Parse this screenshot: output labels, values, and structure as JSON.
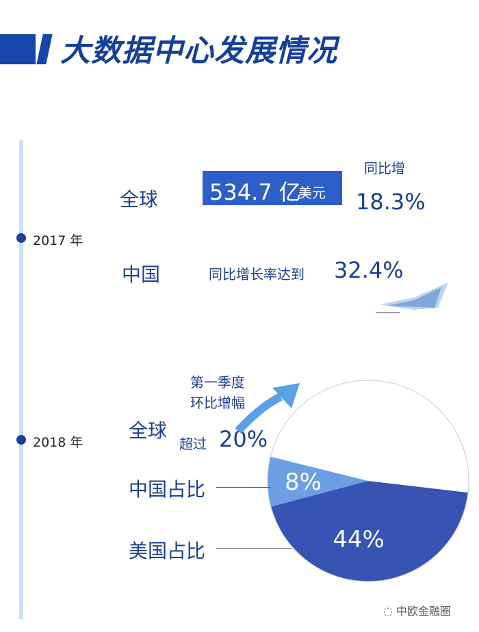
{
  "title": "大数据中心发展情况",
  "y2017": {
    "year": "2017 年",
    "global_label": "全球",
    "market_value": "534.7 亿",
    "market_unit": "美元",
    "yoy_label": "同比增",
    "yoy_value": "18.3%",
    "china_label": "中国",
    "china_text": "同比增长率达到",
    "china_value": "32.4%"
  },
  "y2018": {
    "year": "2018 年",
    "global_label": "全球",
    "q1_line1": "第一季度",
    "q1_line2": "环比增幅",
    "q1_line3": "超过",
    "q1_value": "20%",
    "china_share_label": "中国占比",
    "us_share_label": "美国占比"
  },
  "watermark": "中欧金融圈",
  "chart_data": {
    "type": "pie",
    "slices": [
      {
        "label": "美国占比",
        "value": 44,
        "display": "44%",
        "color": "#3753b4"
      },
      {
        "label": "中国占比",
        "value": 8,
        "display": "8%",
        "color": "#6b9ee3"
      },
      {
        "label": "",
        "value": 48,
        "display": "",
        "color": "#ffffff"
      }
    ]
  },
  "colors": {
    "accent": "#1646a8",
    "timeline": "#c7e1f7"
  }
}
